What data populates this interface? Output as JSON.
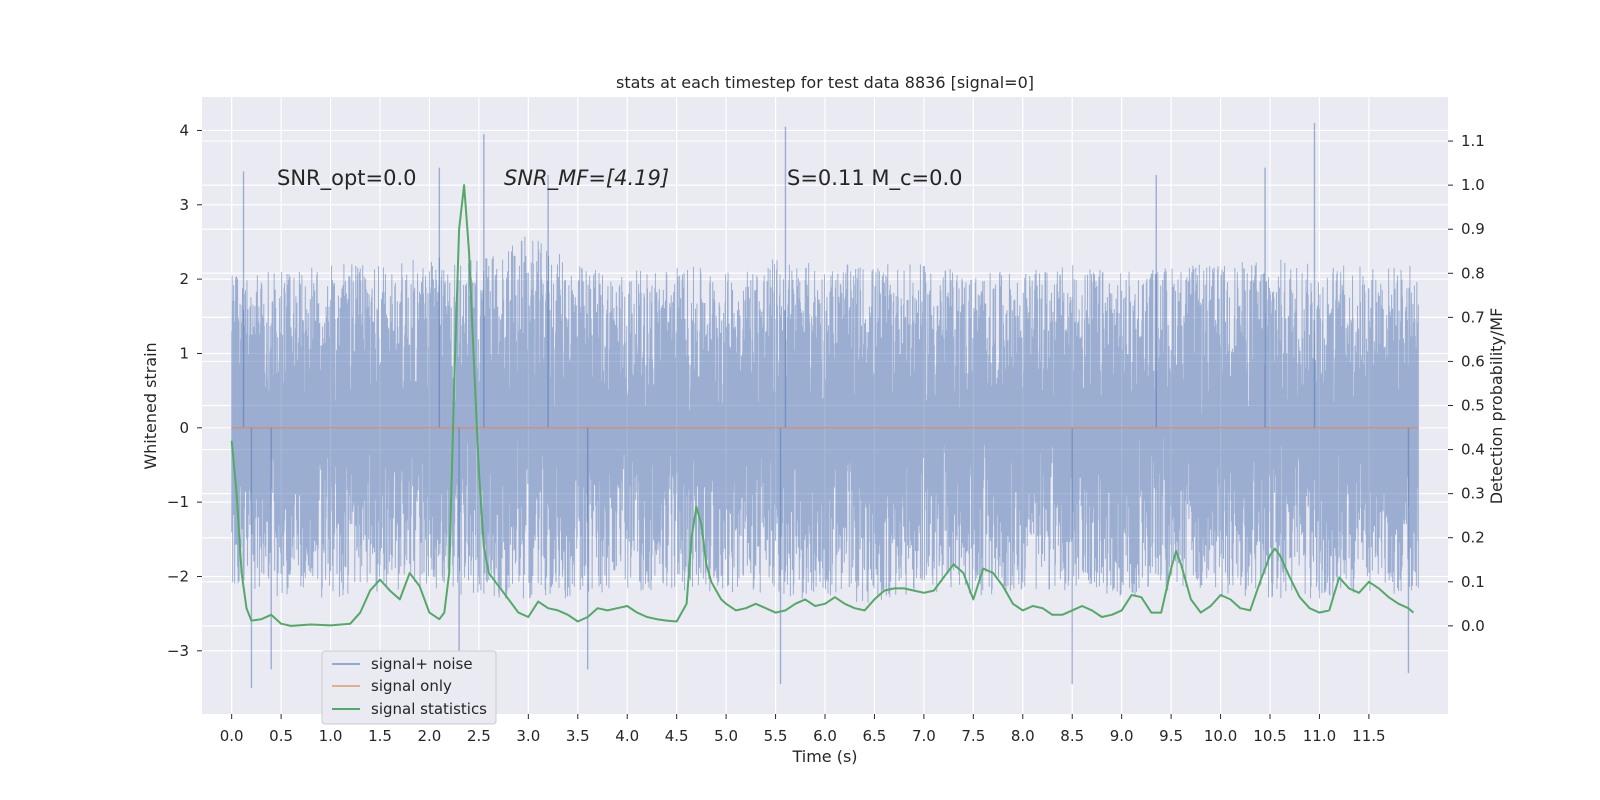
{
  "chart_data": {
    "type": "line",
    "title": "stats at each timestep for test data 8836 [signal=0]",
    "xlabel": "Time (s)",
    "ylabel": "Whitened strain",
    "y2label": "Detection probability/MF",
    "xlim": [
      -0.3,
      12.3
    ],
    "ylim": [
      -3.85,
      4.45
    ],
    "y2lim": [
      -0.2,
      1.2
    ],
    "x_ticks": [
      0.0,
      0.5,
      1.0,
      1.5,
      2.0,
      2.5,
      3.0,
      3.5,
      4.0,
      4.5,
      5.0,
      5.5,
      6.0,
      6.5,
      7.0,
      7.5,
      8.0,
      8.5,
      9.0,
      9.5,
      10.0,
      10.5,
      11.0,
      11.5
    ],
    "x_tick_labels": [
      "0.0",
      "0.5",
      "1.0",
      "1.5",
      "2.0",
      "2.5",
      "3.0",
      "3.5",
      "4.0",
      "4.5",
      "5.0",
      "5.5",
      "6.0",
      "6.5",
      "7.0",
      "7.5",
      "8.0",
      "8.5",
      "9.0",
      "9.5",
      "10.0",
      "10.5",
      "11.0",
      "11.5"
    ],
    "y_ticks": [
      -3,
      -2,
      -1,
      0,
      1,
      2,
      3,
      4
    ],
    "y_tick_labels": [
      "−3",
      "−2",
      "−1",
      "0",
      "1",
      "2",
      "3",
      "4"
    ],
    "y2_ticks": [
      0.0,
      0.1,
      0.2,
      0.3,
      0.4,
      0.5,
      0.6,
      0.7,
      0.8,
      0.9,
      1.0,
      1.1
    ],
    "y2_tick_labels": [
      "0.0",
      "0.1",
      "0.2",
      "0.3",
      "0.4",
      "0.5",
      "0.6",
      "0.7",
      "0.8",
      "0.9",
      "1.0",
      "1.1"
    ],
    "grid": true,
    "legend_position": "lower-left",
    "annotations": [
      {
        "text": "SNR_opt=0.0",
        "x": 0.2,
        "y": 3.3
      },
      {
        "text": "SNR_MF=[4.19]",
        "x": 2.6,
        "y": 3.3
      },
      {
        "text": "S=0.11   M_c=0.0",
        "x": 5.6,
        "y": 3.3
      }
    ],
    "series": [
      {
        "name": "signal+ noise",
        "axis": "left",
        "color": "#4c72b0",
        "style": "dense noise",
        "x_range": [
          0.0,
          12.0
        ],
        "envelope_upper": [
          2.1,
          2.1,
          2.2,
          2.2,
          2.3,
          2.3,
          2.6,
          2.2,
          2.1,
          2.2,
          2.1,
          2.3,
          2.2,
          2.2,
          2.2,
          2.1,
          2.1,
          2.2,
          2.1,
          2.2,
          2.2,
          2.3,
          2.2,
          2.2,
          2.2
        ],
        "envelope_lower": [
          -2.1,
          -2.3,
          -2.3,
          -2.2,
          -2.2,
          -2.3,
          -2.3,
          -2.3,
          -2.2,
          -2.2,
          -2.2,
          -2.3,
          -2.3,
          -2.4,
          -2.2,
          -2.3,
          -2.2,
          -2.2,
          -2.3,
          -2.2,
          -2.3,
          -2.3,
          -2.4,
          -2.2,
          -2.3
        ],
        "peaks": [
          {
            "x": 0.12,
            "y": 3.45
          },
          {
            "x": 0.2,
            "y": -3.5
          },
          {
            "x": 2.1,
            "y": 3.5
          },
          {
            "x": 2.55,
            "y": 3.95
          },
          {
            "x": 3.2,
            "y": 3.4
          },
          {
            "x": 5.55,
            "y": -3.45
          },
          {
            "x": 5.6,
            "y": 4.05
          },
          {
            "x": 8.5,
            "y": -3.45
          },
          {
            "x": 10.95,
            "y": 4.1
          },
          {
            "x": 10.45,
            "y": 3.5
          },
          {
            "x": 9.35,
            "y": 3.4
          },
          {
            "x": 11.9,
            "y": -3.3
          },
          {
            "x": 0.4,
            "y": -3.25
          },
          {
            "x": 2.3,
            "y": -3.0
          },
          {
            "x": 3.6,
            "y": -3.25
          }
        ]
      },
      {
        "name": "signal only",
        "axis": "left",
        "color": "#dd8452",
        "x": [
          0.0,
          12.0
        ],
        "y": [
          0.0,
          0.0
        ]
      },
      {
        "name": "signal statistics",
        "axis": "right",
        "color": "#55a868",
        "x": [
          0.0,
          0.05,
          0.1,
          0.15,
          0.2,
          0.3,
          0.4,
          0.5,
          0.6,
          0.8,
          1.0,
          1.2,
          1.3,
          1.4,
          1.5,
          1.6,
          1.7,
          1.8,
          1.9,
          2.0,
          2.1,
          2.15,
          2.2,
          2.25,
          2.3,
          2.35,
          2.4,
          2.45,
          2.5,
          2.55,
          2.6,
          2.7,
          2.8,
          2.9,
          3.0,
          3.1,
          3.2,
          3.3,
          3.4,
          3.5,
          3.6,
          3.7,
          3.8,
          3.9,
          4.0,
          4.1,
          4.2,
          4.3,
          4.4,
          4.5,
          4.6,
          4.65,
          4.7,
          4.75,
          4.8,
          4.85,
          4.9,
          4.95,
          5.0,
          5.1,
          5.2,
          5.3,
          5.4,
          5.5,
          5.6,
          5.7,
          5.8,
          5.9,
          6.0,
          6.1,
          6.2,
          6.3,
          6.4,
          6.5,
          6.6,
          6.7,
          6.8,
          6.9,
          7.0,
          7.1,
          7.2,
          7.3,
          7.4,
          7.5,
          7.6,
          7.7,
          7.8,
          7.9,
          8.0,
          8.1,
          8.2,
          8.3,
          8.4,
          8.5,
          8.6,
          8.7,
          8.8,
          8.9,
          9.0,
          9.1,
          9.2,
          9.3,
          9.4,
          9.5,
          9.55,
          9.6,
          9.7,
          9.8,
          9.9,
          10.0,
          10.1,
          10.2,
          10.3,
          10.4,
          10.5,
          10.55,
          10.6,
          10.7,
          10.8,
          10.9,
          11.0,
          11.1,
          11.2,
          11.3,
          11.4,
          11.5,
          11.6,
          11.7,
          11.8,
          11.9,
          11.95
        ],
        "y": [
          0.42,
          0.3,
          0.12,
          0.04,
          0.012,
          0.015,
          0.025,
          0.005,
          0.0,
          0.003,
          0.001,
          0.005,
          0.03,
          0.08,
          0.105,
          0.08,
          0.06,
          0.12,
          0.09,
          0.03,
          0.015,
          0.03,
          0.12,
          0.55,
          0.9,
          1.0,
          0.85,
          0.6,
          0.35,
          0.18,
          0.12,
          0.09,
          0.06,
          0.03,
          0.02,
          0.055,
          0.04,
          0.035,
          0.025,
          0.01,
          0.02,
          0.04,
          0.035,
          0.04,
          0.045,
          0.03,
          0.02,
          0.015,
          0.012,
          0.01,
          0.05,
          0.2,
          0.27,
          0.23,
          0.14,
          0.1,
          0.08,
          0.06,
          0.05,
          0.035,
          0.04,
          0.05,
          0.04,
          0.03,
          0.035,
          0.05,
          0.06,
          0.045,
          0.05,
          0.065,
          0.05,
          0.04,
          0.035,
          0.06,
          0.08,
          0.085,
          0.085,
          0.08,
          0.075,
          0.08,
          0.11,
          0.14,
          0.12,
          0.06,
          0.13,
          0.12,
          0.09,
          0.05,
          0.035,
          0.045,
          0.04,
          0.025,
          0.025,
          0.035,
          0.045,
          0.035,
          0.02,
          0.025,
          0.035,
          0.07,
          0.065,
          0.03,
          0.03,
          0.13,
          0.17,
          0.14,
          0.06,
          0.03,
          0.045,
          0.07,
          0.06,
          0.04,
          0.035,
          0.1,
          0.16,
          0.175,
          0.16,
          0.11,
          0.065,
          0.04,
          0.03,
          0.035,
          0.11,
          0.085,
          0.075,
          0.1,
          0.085,
          0.065,
          0.05,
          0.04,
          0.03
        ]
      }
    ]
  }
}
